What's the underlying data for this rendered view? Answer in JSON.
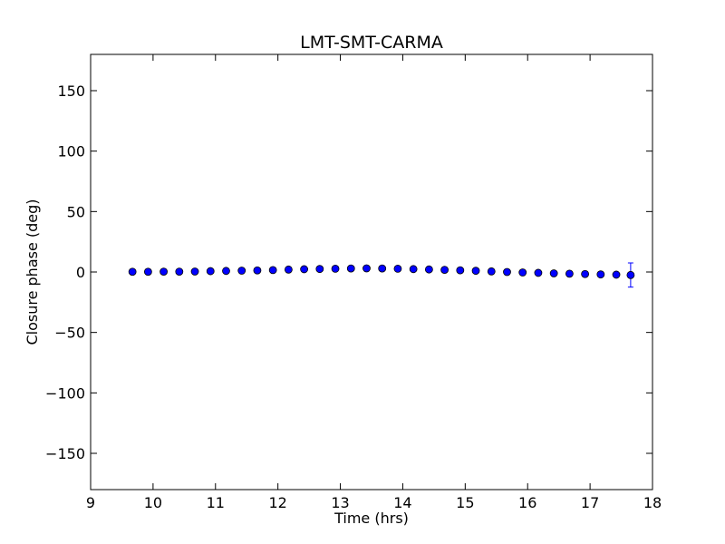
{
  "chart_data": {
    "type": "scatter",
    "title": "LMT-SMT-CARMA",
    "xlabel": "Time (hrs)",
    "ylabel": "Closure phase (deg)",
    "xlim": [
      9,
      18
    ],
    "ylim": [
      -180,
      180
    ],
    "x_ticks": [
      9,
      10,
      11,
      12,
      13,
      14,
      15,
      16,
      17,
      18
    ],
    "x_tick_labels": [
      "9",
      "10",
      "11",
      "12",
      "13",
      "14",
      "15",
      "16",
      "17",
      "18"
    ],
    "y_ticks": [
      -150,
      -100,
      -50,
      0,
      50,
      100,
      150
    ],
    "y_tick_labels": [
      "−150",
      "−100",
      "−50",
      "0",
      "50",
      "100",
      "150"
    ],
    "grid": false,
    "legend": "none",
    "colors": {
      "marker_fill": "#0000ff",
      "marker_edge": "#000000",
      "errorbar": "#0000ff",
      "axes": "#000000",
      "background": "#ffffff"
    },
    "series": [
      {
        "x": [
          9.67,
          9.92,
          10.17,
          10.42,
          10.67,
          10.92,
          11.17,
          11.42,
          11.67,
          11.92,
          12.17,
          12.42,
          12.67,
          12.92,
          13.17,
          13.42,
          13.67,
          13.92,
          14.17,
          14.42,
          14.67,
          14.92,
          15.17,
          15.42,
          15.67,
          15.92,
          16.17,
          16.42,
          16.67,
          16.92,
          17.17,
          17.42,
          17.65
        ],
        "y": [
          0.2,
          0.2,
          0.3,
          0.3,
          0.4,
          0.7,
          0.9,
          1.1,
          1.3,
          1.6,
          2.0,
          2.3,
          2.5,
          2.7,
          2.9,
          3.0,
          2.9,
          2.7,
          2.4,
          2.1,
          1.8,
          1.4,
          1.0,
          0.5,
          0.0,
          -0.4,
          -0.7,
          -1.1,
          -1.4,
          -1.7,
          -2.0,
          -2.2,
          -2.5
        ],
        "yerr": [
          0.4,
          0.4,
          0.4,
          0.4,
          0.4,
          0.4,
          0.4,
          0.4,
          0.4,
          0.4,
          0.4,
          0.4,
          0.4,
          0.4,
          0.4,
          0.4,
          0.4,
          0.4,
          0.4,
          0.4,
          0.4,
          0.4,
          0.4,
          0.4,
          0.4,
          0.4,
          0.4,
          0.4,
          0.4,
          0.4,
          0.4,
          0.4,
          10.0
        ]
      }
    ]
  }
}
